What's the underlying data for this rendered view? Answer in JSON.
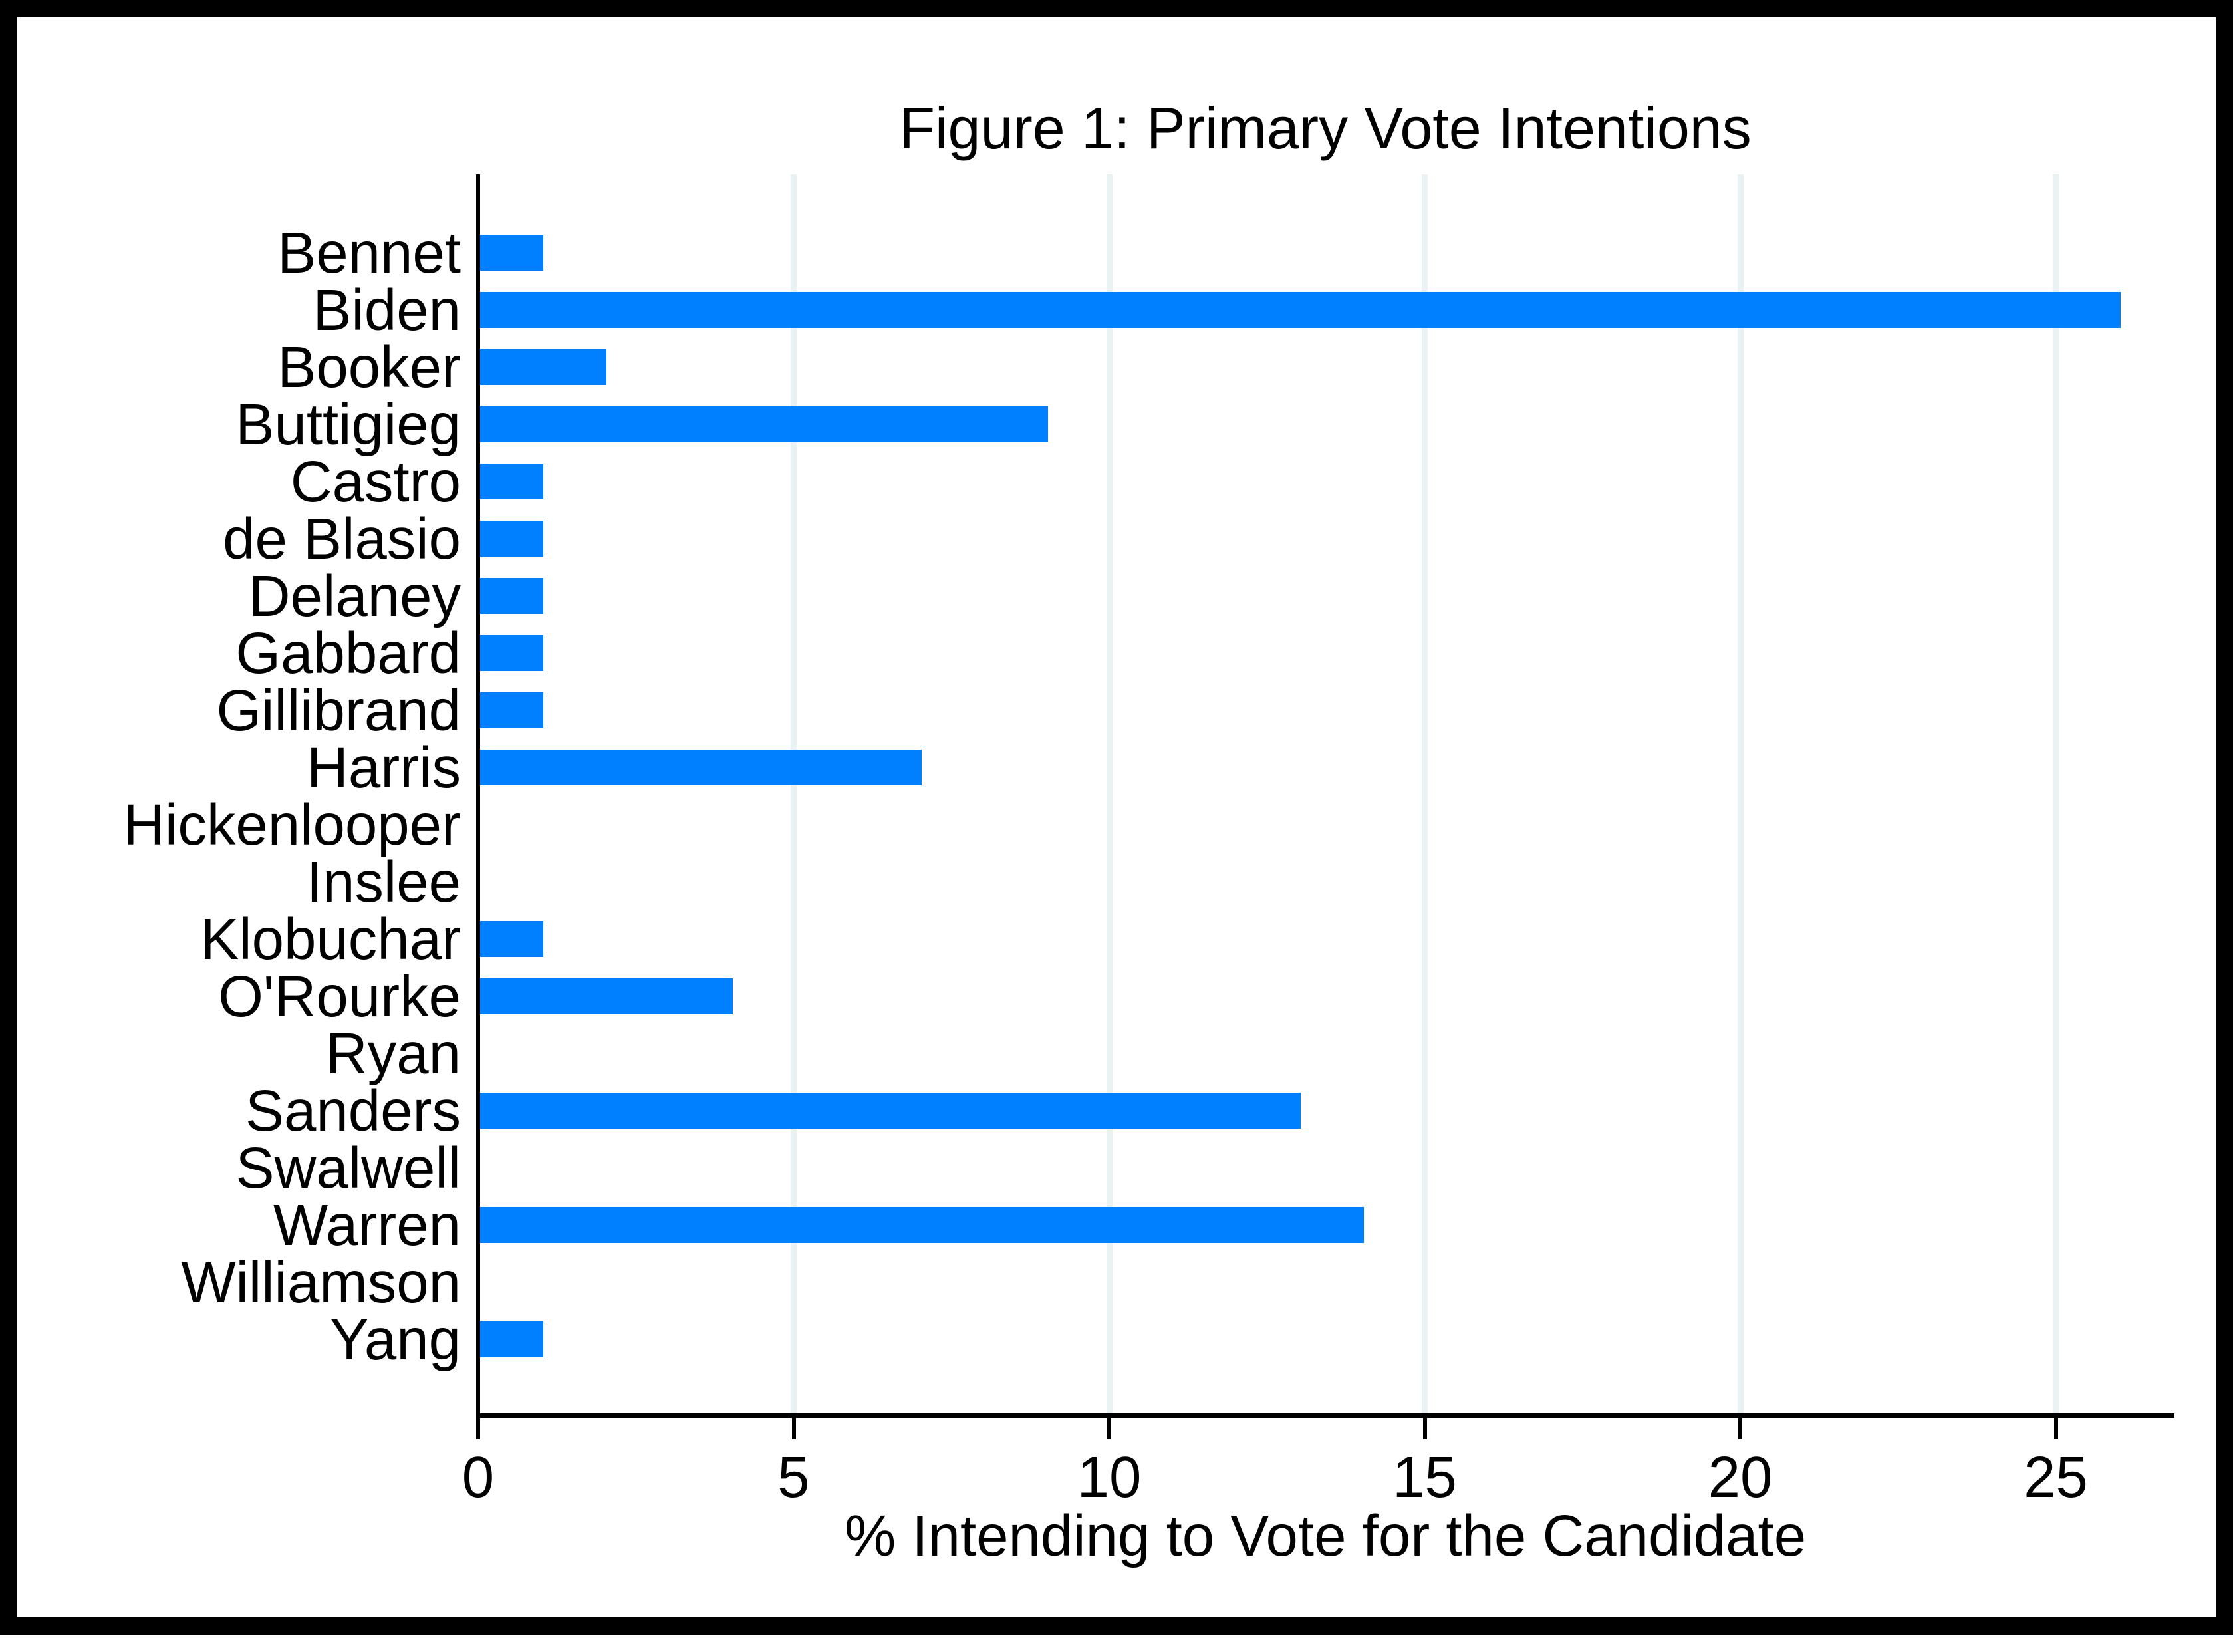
{
  "chart_data": {
    "type": "bar",
    "orientation": "horizontal",
    "title": "Figure 1: Primary Vote Intentions",
    "xlabel": "% Intending to Vote for the Candidate",
    "categories": [
      "Bennet",
      "Biden",
      "Booker",
      "Buttigieg",
      "Castro",
      "de Blasio",
      "Delaney",
      "Gabbard",
      "Gillibrand",
      "Harris",
      "Hickenlooper",
      "Inslee",
      "Klobuchar",
      "O'Rourke",
      "Ryan",
      "Sanders",
      "Swalwell",
      "Warren",
      "Williamson",
      "Yang"
    ],
    "values": [
      1,
      26,
      2,
      9,
      1,
      1,
      1,
      1,
      1,
      7,
      0,
      0,
      1,
      4,
      0,
      13,
      0,
      14,
      0,
      1
    ],
    "xticks": [
      0,
      5,
      10,
      15,
      20,
      25
    ],
    "xlim": [
      0,
      26.9
    ],
    "grid": true,
    "legend": null,
    "colors": {
      "bar": "#0080fe",
      "gridline": "#eaf2f3",
      "axis": "#000000",
      "text": "#000000",
      "background": "#ffffff",
      "frame": "#000000"
    }
  }
}
